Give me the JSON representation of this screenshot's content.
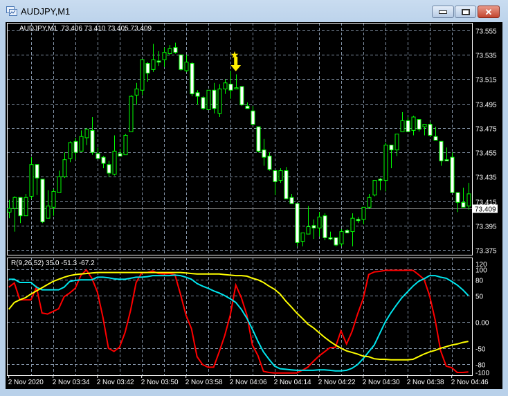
{
  "window": {
    "title": "AUDJPY,M1",
    "buttons": [
      "minimize",
      "maximize",
      "close"
    ]
  },
  "chart_header": {
    "symbol": "AUDJPY,M1",
    "open": "73.406",
    "high": "73.410",
    "low": "73.405",
    "close": "73.409"
  },
  "indicator_header": "R(9,26,52) 35.0 -51.3 -67.2",
  "colors": {
    "background": "#000000",
    "candle_outline": "#00ff00",
    "bear_fill": "#ffffff",
    "bull_fill": "#000000",
    "grid": "#8494a8",
    "red_line": "#ff0000",
    "cyan_line": "#00e5ee",
    "yellow_line": "#ffff00",
    "signal": "#ffee00"
  },
  "price_axis": {
    "labels": [
      "73.555",
      "73.535",
      "73.515",
      "73.495",
      "73.475",
      "73.455",
      "73.435",
      "73.415",
      "73.395",
      "73.375"
    ],
    "current_price": "73.409"
  },
  "indicator_axis": {
    "labels": [
      "120",
      "100",
      "80",
      "50",
      "0.00",
      "-50",
      "-80",
      "-100"
    ]
  },
  "time_axis": {
    "labels": [
      "2 Nov 2020",
      "2 Nov 03:34",
      "2 Nov 03:42",
      "2 Nov 03:50",
      "2 Nov 03:58",
      "2 Nov 04:06",
      "2 Nov 04:14",
      "2 Nov 04:22",
      "2 Nov 04:30",
      "2 Nov 04:38",
      "2 Nov 04:46"
    ]
  },
  "chart_data": [
    {
      "type": "candlestick",
      "ylim": [
        73.375,
        73.555
      ],
      "grid": true,
      "ohlc": [
        [
          73.406,
          73.416,
          73.401,
          73.409
        ],
        [
          73.409,
          73.419,
          73.39,
          73.418
        ],
        [
          73.418,
          73.418,
          73.397,
          73.403
        ],
        [
          73.403,
          73.421,
          73.403,
          73.418
        ],
        [
          73.419,
          73.451,
          73.417,
          73.445
        ],
        [
          73.445,
          73.445,
          73.42,
          73.434
        ],
        [
          73.433,
          73.433,
          73.397,
          73.398
        ],
        [
          73.401,
          73.424,
          73.401,
          73.411
        ],
        [
          73.41,
          73.425,
          73.403,
          73.423
        ],
        [
          73.422,
          73.44,
          73.422,
          73.435
        ],
        [
          73.435,
          73.455,
          73.434,
          73.449
        ],
        [
          73.45,
          73.464,
          73.447,
          73.463
        ],
        [
          73.464,
          73.467,
          73.449,
          73.455
        ],
        [
          73.456,
          73.473,
          73.456,
          73.468
        ],
        [
          73.467,
          73.475,
          73.461,
          73.474
        ],
        [
          73.473,
          73.484,
          73.453,
          73.455
        ],
        [
          73.454,
          73.459,
          73.45,
          73.45
        ],
        [
          73.451,
          73.452,
          73.442,
          73.446
        ],
        [
          73.445,
          73.448,
          73.435,
          73.438
        ],
        [
          73.437,
          73.469,
          73.436,
          73.456
        ],
        [
          73.454,
          73.458,
          73.452,
          73.452
        ],
        [
          73.453,
          73.47,
          73.453,
          73.469
        ],
        [
          73.472,
          73.502,
          73.472,
          73.501
        ],
        [
          73.502,
          73.512,
          73.494,
          73.507
        ],
        [
          73.506,
          73.531,
          73.502,
          73.531
        ],
        [
          73.528,
          73.529,
          73.513,
          73.52
        ],
        [
          73.523,
          73.544,
          73.521,
          73.531
        ],
        [
          73.53,
          73.538,
          73.526,
          73.529
        ],
        [
          73.531,
          73.541,
          73.525,
          73.537
        ],
        [
          73.536,
          73.543,
          73.535,
          73.54
        ],
        [
          73.541,
          73.545,
          73.536,
          73.537
        ],
        [
          73.535,
          73.535,
          73.522,
          73.523
        ],
        [
          73.522,
          73.535,
          73.521,
          73.529
        ],
        [
          73.528,
          73.529,
          73.501,
          73.503
        ],
        [
          73.504,
          73.506,
          73.494,
          73.501
        ],
        [
          73.5,
          73.501,
          73.49,
          73.491
        ],
        [
          73.49,
          73.506,
          73.49,
          73.506
        ],
        [
          73.506,
          73.512,
          73.487,
          73.491
        ],
        [
          73.487,
          73.511,
          73.484,
          73.507
        ],
        [
          73.507,
          73.515,
          73.503,
          73.512
        ],
        [
          73.511,
          73.522,
          73.499,
          73.506
        ],
        [
          73.507,
          73.519,
          73.507,
          73.508
        ],
        [
          73.509,
          73.509,
          73.493,
          73.494
        ],
        [
          73.493,
          73.496,
          73.491,
          73.491
        ],
        [
          73.489,
          73.493,
          73.478,
          73.478
        ],
        [
          73.476,
          73.476,
          73.455,
          73.456
        ],
        [
          73.457,
          73.466,
          73.444,
          73.451
        ],
        [
          73.452,
          73.455,
          73.44,
          73.441
        ],
        [
          73.44,
          73.44,
          73.42,
          73.431
        ],
        [
          73.432,
          73.442,
          73.43,
          73.44
        ],
        [
          73.44,
          73.443,
          73.417,
          73.417
        ],
        [
          73.418,
          73.421,
          73.413,
          73.413
        ],
        [
          73.413,
          73.413,
          73.378,
          73.381
        ],
        [
          73.382,
          73.389,
          73.378,
          73.389
        ],
        [
          73.388,
          73.411,
          73.388,
          73.394
        ],
        [
          73.395,
          73.4,
          73.384,
          73.393
        ],
        [
          73.393,
          73.406,
          73.386,
          73.402
        ],
        [
          73.403,
          73.405,
          73.383,
          73.385
        ],
        [
          73.385,
          73.39,
          73.383,
          73.384
        ],
        [
          73.385,
          73.385,
          73.378,
          73.379
        ],
        [
          73.38,
          73.392,
          73.378,
          73.39
        ],
        [
          73.391,
          73.392,
          73.389,
          73.389
        ],
        [
          73.39,
          73.405,
          73.378,
          73.401
        ],
        [
          73.4,
          73.402,
          73.397,
          73.399
        ],
        [
          73.4,
          73.41,
          73.396,
          73.41
        ],
        [
          73.41,
          73.421,
          73.409,
          73.418
        ],
        [
          73.42,
          73.432,
          73.419,
          73.432
        ],
        [
          73.433,
          73.434,
          73.424,
          73.432
        ],
        [
          73.432,
          73.463,
          73.423,
          73.461
        ],
        [
          73.461,
          73.461,
          73.442,
          73.457
        ],
        [
          73.457,
          73.47,
          73.452,
          73.47
        ],
        [
          73.472,
          73.488,
          73.472,
          73.481
        ],
        [
          73.481,
          73.484,
          73.472,
          73.472
        ],
        [
          73.473,
          73.485,
          73.469,
          73.484
        ],
        [
          73.482,
          73.482,
          73.472,
          73.474
        ],
        [
          73.476,
          73.478,
          73.469,
          73.478
        ],
        [
          73.478,
          73.48,
          73.468,
          73.469
        ],
        [
          73.468,
          73.476,
          73.465,
          73.465
        ],
        [
          73.464,
          73.464,
          73.444,
          73.448
        ],
        [
          73.449,
          73.459,
          73.448,
          73.448
        ],
        [
          73.451,
          73.455,
          73.422,
          73.422
        ],
        [
          73.422,
          73.422,
          73.406,
          73.414
        ],
        [
          73.414,
          73.426,
          73.41,
          73.41
        ],
        [
          73.411,
          73.43,
          73.408,
          73.421
        ]
      ],
      "current_price": 73.409,
      "signal": {
        "bar_index": 41,
        "type": "sell-arrow-with-star"
      }
    },
    {
      "type": "line",
      "ylim": [
        -100,
        120
      ],
      "grid": true,
      "series": [
        {
          "color": "#ff0000",
          "values": [
            66,
            74,
            42,
            42,
            42,
            66,
            17,
            15,
            20,
            25,
            48,
            55,
            64,
            88,
            99,
            83,
            57,
            9,
            -50,
            -56,
            -48,
            -20,
            22,
            75,
            93,
            94,
            97,
            92,
            91,
            92,
            90,
            53,
            13,
            -13,
            -66,
            -81,
            -86,
            -86,
            -57,
            -26,
            13,
            70,
            46,
            13,
            -44,
            -64,
            -94,
            -96,
            -97,
            -97,
            -97,
            -97,
            -97,
            -92,
            -86,
            -75,
            -65,
            -57,
            -49,
            -48,
            -17,
            -42,
            -18,
            15,
            44,
            90,
            95,
            96,
            98,
            98,
            98,
            98,
            98,
            98,
            90,
            81,
            50,
            4,
            -55,
            -84,
            -87,
            -96,
            -96,
            -95
          ]
        },
        {
          "color": "#00e5ee",
          "values": [
            81,
            81,
            75,
            75,
            75,
            66,
            61,
            61,
            61,
            61,
            66,
            77,
            79,
            80,
            80,
            80,
            85,
            85,
            84,
            82,
            81,
            81,
            83,
            85,
            85,
            86,
            88,
            88,
            88,
            88,
            89,
            88,
            85,
            81,
            73,
            68,
            64,
            59,
            55,
            50,
            44,
            37,
            24,
            7,
            -14,
            -37,
            -57,
            -71,
            -84,
            -89,
            -90,
            -91,
            -92,
            -92,
            -92,
            -92,
            -91,
            -91,
            -92,
            -93,
            -93,
            -92,
            -88,
            -81,
            -70,
            -57,
            -44,
            -22,
            0,
            17,
            32,
            46,
            57,
            68,
            77,
            82,
            88,
            88,
            85,
            83,
            77,
            70,
            61,
            50
          ]
        },
        {
          "color": "#ffff00",
          "values": [
            24,
            37,
            42,
            46,
            53,
            59,
            65,
            71,
            77,
            81,
            85,
            88,
            90,
            91,
            92,
            93,
            94,
            94,
            94,
            94,
            94,
            94,
            94,
            94,
            94,
            94,
            94,
            94,
            94,
            94,
            94,
            94,
            93,
            92,
            91,
            91,
            91,
            91,
            91,
            90,
            89,
            88,
            88,
            87,
            83,
            80,
            75,
            68,
            62,
            53,
            40,
            29,
            17,
            7,
            -4,
            -11,
            -20,
            -29,
            -37,
            -44,
            -50,
            -55,
            -58,
            -61,
            -65,
            -66,
            -70,
            -71,
            -71,
            -72,
            -72,
            -72,
            -72,
            -71,
            -66,
            -61,
            -57,
            -54,
            -50,
            -47,
            -44,
            -42,
            -39,
            -37
          ]
        }
      ]
    }
  ]
}
